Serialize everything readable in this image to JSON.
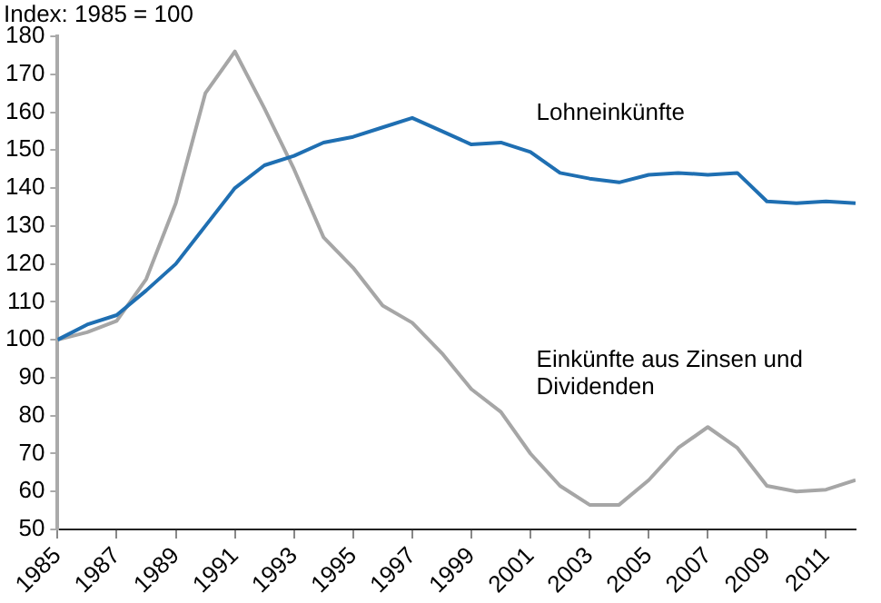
{
  "chart_data": {
    "type": "line",
    "title": "Index: 1985 = 100",
    "x": [
      1985,
      1986,
      1987,
      1988,
      1989,
      1990,
      1991,
      1992,
      1993,
      1994,
      1995,
      1996,
      1997,
      1998,
      1999,
      2000,
      2001,
      2002,
      2003,
      2004,
      2005,
      2006,
      2007,
      2008,
      2009,
      2010,
      2011,
      2012
    ],
    "series": [
      {
        "name": "Lohneinkünfte",
        "color": "#1f6fb2",
        "values": [
          100,
          104,
          106.5,
          113,
          120,
          130,
          140,
          146,
          148.5,
          152,
          153.5,
          156,
          158.5,
          155,
          151.5,
          152,
          149.5,
          144,
          142.5,
          141.5,
          143.5,
          144,
          143.5,
          144,
          136.5,
          136,
          136.5,
          136
        ]
      },
      {
        "name": "Einkünfte aus Zinsen und Dividenden",
        "color": "#a6a6a6",
        "values": [
          100,
          102,
          105,
          116,
          136,
          165,
          176,
          161,
          145,
          127,
          119,
          109,
          104.5,
          96.5,
          87,
          81,
          70,
          61.5,
          56.5,
          56.5,
          63,
          71.5,
          77,
          71.5,
          61.5,
          60,
          60.5,
          63
        ]
      }
    ],
    "xlim": [
      1985,
      2012
    ],
    "xticks": [
      1985,
      1987,
      1989,
      1991,
      1993,
      1995,
      1997,
      1999,
      2001,
      2003,
      2005,
      2007,
      2009,
      2011
    ],
    "ylim": [
      50,
      180
    ],
    "yticks": [
      50,
      60,
      70,
      80,
      90,
      100,
      110,
      120,
      130,
      140,
      150,
      160,
      170,
      180
    ],
    "grid": false,
    "legend": false,
    "marker": "none",
    "line_style": "solid"
  }
}
